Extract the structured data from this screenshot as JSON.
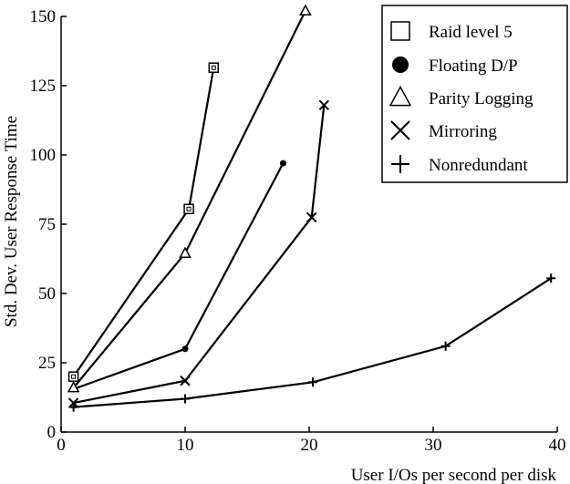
{
  "chart_data": {
    "type": "line",
    "title": "",
    "xlabel": "User I/Os per second per disk",
    "ylabel": "Std. Dev. User Response Time",
    "xlim": [
      0,
      40
    ],
    "ylim": [
      0,
      150
    ],
    "xticks": [
      0,
      10,
      20,
      30,
      40
    ],
    "yticks": [
      0,
      25,
      50,
      75,
      100,
      125,
      150
    ],
    "xtick_labels": [
      "0",
      "10",
      "20",
      "30",
      "40"
    ],
    "ytick_labels": [
      "0",
      "25",
      "50",
      "75",
      "100",
      "125",
      "150"
    ],
    "grid": false,
    "legend_position": "top-right",
    "series": [
      {
        "name": "Raid level 5",
        "marker": "square",
        "points": [
          [
            1,
            20
          ],
          [
            10.3,
            80.5
          ],
          [
            12.3,
            131.5
          ]
        ]
      },
      {
        "name": "Floating D/P",
        "marker": "circle",
        "points": [
          [
            1,
            15.5
          ],
          [
            10,
            30
          ],
          [
            17.9,
            97
          ]
        ]
      },
      {
        "name": "Parity Logging",
        "marker": "triangle",
        "points": [
          [
            1,
            16
          ],
          [
            10,
            64.5
          ],
          [
            19.7,
            152
          ]
        ]
      },
      {
        "name": "Mirroring",
        "marker": "x",
        "points": [
          [
            1,
            10.5
          ],
          [
            10,
            18.5
          ],
          [
            20.2,
            77.5
          ],
          [
            21.2,
            118
          ]
        ]
      },
      {
        "name": "Nonredundant",
        "marker": "plus",
        "points": [
          [
            1,
            9
          ],
          [
            10,
            12
          ],
          [
            20.3,
            18
          ],
          [
            31,
            31
          ],
          [
            39.5,
            55.5
          ]
        ]
      }
    ]
  }
}
